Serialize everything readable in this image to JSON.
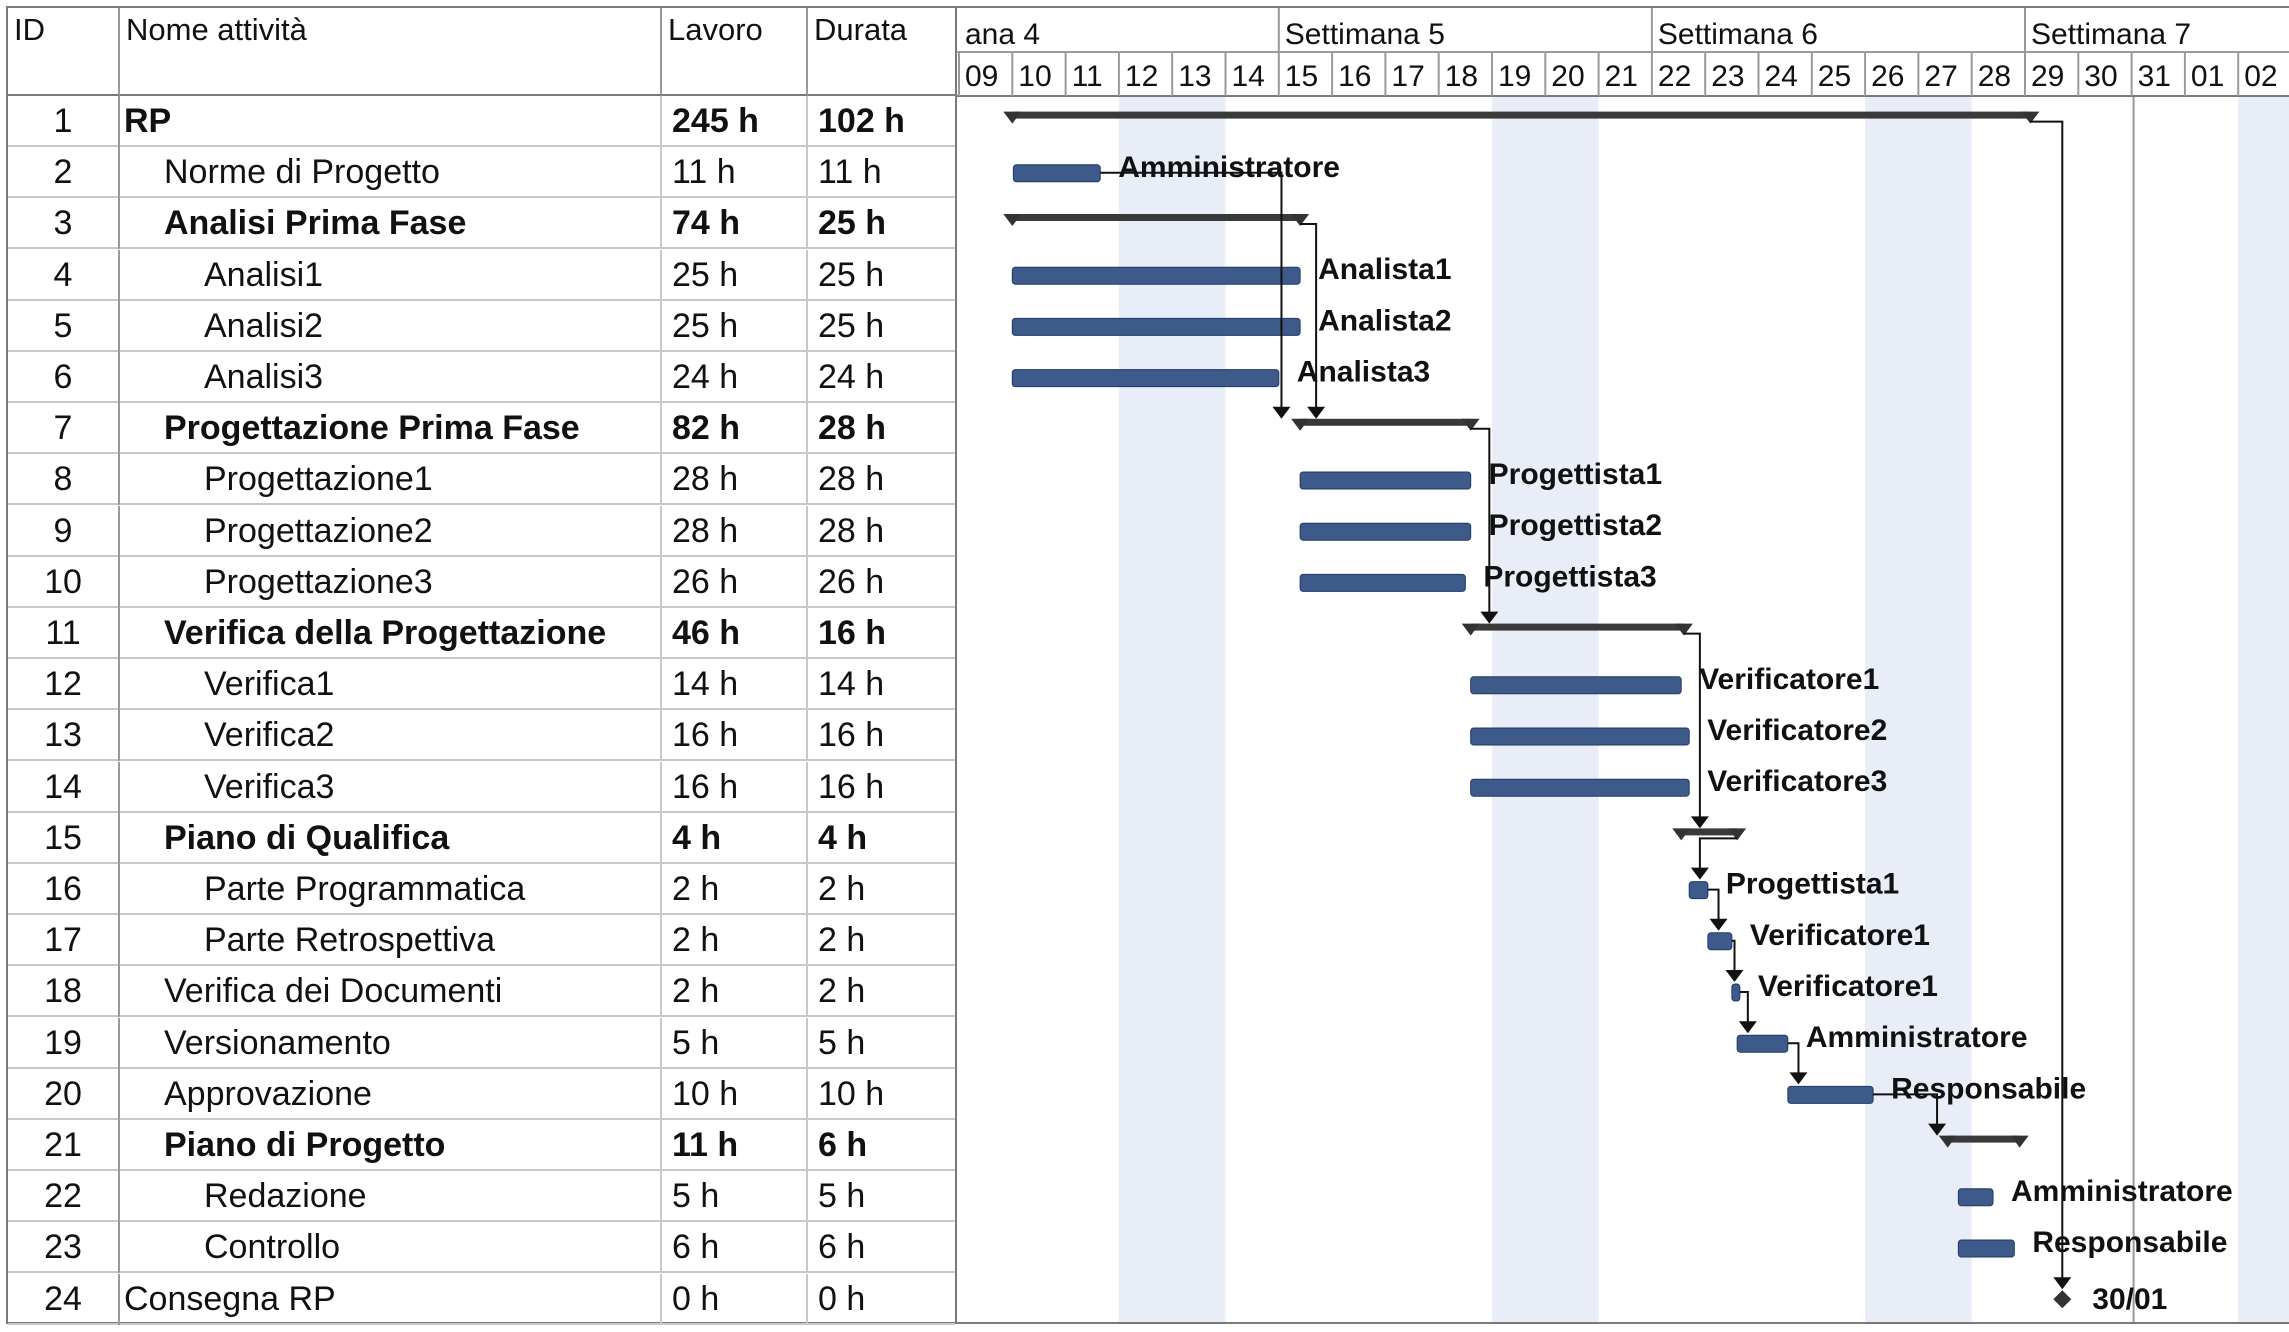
{
  "columns": {
    "id": "ID",
    "name": "Nome attività",
    "work": "Lavoro",
    "duration": "Durata"
  },
  "timeline": {
    "weeks": [
      "ana 4",
      "Settimana 5",
      "Settimana 6",
      "Settimana 7"
    ],
    "days": [
      "09",
      "10",
      "11",
      "12",
      "13",
      "14",
      "15",
      "16",
      "17",
      "18",
      "19",
      "20",
      "21",
      "22",
      "23",
      "24",
      "25",
      "26",
      "27",
      "28",
      "29",
      "30",
      "31",
      "01",
      "02"
    ]
  },
  "tasks": [
    {
      "id": "1",
      "name": "RP",
      "work": "245 h",
      "duration": "102 h",
      "level": 0,
      "summary": true
    },
    {
      "id": "2",
      "name": "Norme di Progetto",
      "work": "11 h",
      "duration": "11 h",
      "level": 1,
      "summary": false,
      "resource": "Amministratore"
    },
    {
      "id": "3",
      "name": "Analisi Prima Fase",
      "work": "74 h",
      "duration": "25 h",
      "level": 1,
      "summary": true
    },
    {
      "id": "4",
      "name": "Analisi1",
      "work": "25 h",
      "duration": "25 h",
      "level": 2,
      "summary": false,
      "resource": "Analista1"
    },
    {
      "id": "5",
      "name": "Analisi2",
      "work": "25 h",
      "duration": "25 h",
      "level": 2,
      "summary": false,
      "resource": "Analista2"
    },
    {
      "id": "6",
      "name": "Analisi3",
      "work": "24 h",
      "duration": "24 h",
      "level": 2,
      "summary": false,
      "resource": "Analista3"
    },
    {
      "id": "7",
      "name": "Progettazione Prima Fase",
      "work": "82 h",
      "duration": "28 h",
      "level": 1,
      "summary": true
    },
    {
      "id": "8",
      "name": "Progettazione1",
      "work": "28 h",
      "duration": "28 h",
      "level": 2,
      "summary": false,
      "resource": "Progettista1"
    },
    {
      "id": "9",
      "name": "Progettazione2",
      "work": "28 h",
      "duration": "28 h",
      "level": 2,
      "summary": false,
      "resource": "Progettista2"
    },
    {
      "id": "10",
      "name": "Progettazione3",
      "work": "26 h",
      "duration": "26 h",
      "level": 2,
      "summary": false,
      "resource": "Progettista3"
    },
    {
      "id": "11",
      "name": "Verifica della Progettazione",
      "work": "46 h",
      "duration": "16 h",
      "level": 1,
      "summary": true
    },
    {
      "id": "12",
      "name": "Verifica1",
      "work": "14 h",
      "duration": "14 h",
      "level": 2,
      "summary": false,
      "resource": "Verificatore1"
    },
    {
      "id": "13",
      "name": "Verifica2",
      "work": "16 h",
      "duration": "16 h",
      "level": 2,
      "summary": false,
      "resource": "Verificatore2"
    },
    {
      "id": "14",
      "name": "Verifica3",
      "work": "16 h",
      "duration": "16 h",
      "level": 2,
      "summary": false,
      "resource": "Verificatore3"
    },
    {
      "id": "15",
      "name": "Piano di Qualifica",
      "work": "4 h",
      "duration": "4 h",
      "level": 1,
      "summary": true
    },
    {
      "id": "16",
      "name": "Parte Programmatica",
      "work": "2 h",
      "duration": "2 h",
      "level": 2,
      "summary": false,
      "resource": "Progettista1"
    },
    {
      "id": "17",
      "name": "Parte Retrospettiva",
      "work": "2 h",
      "duration": "2 h",
      "level": 2,
      "summary": false,
      "resource": "Verificatore1"
    },
    {
      "id": "18",
      "name": "Verifica dei Documenti",
      "work": "2 h",
      "duration": "2 h",
      "level": 1,
      "summary": false,
      "resource": "Verificatore1"
    },
    {
      "id": "19",
      "name": "Versionamento",
      "work": "5 h",
      "duration": "5 h",
      "level": 1,
      "summary": false,
      "resource": "Amministratore"
    },
    {
      "id": "20",
      "name": "Approvazione",
      "work": "10 h",
      "duration": "10 h",
      "level": 1,
      "summary": false,
      "resource": "Responsabile"
    },
    {
      "id": "21",
      "name": "Piano di Progetto",
      "work": "11 h",
      "duration": "6 h",
      "level": 1,
      "summary": true
    },
    {
      "id": "22",
      "name": "Redazione",
      "work": "5 h",
      "duration": "5 h",
      "level": 2,
      "summary": false,
      "resource": "Amministratore"
    },
    {
      "id": "23",
      "name": "Controllo",
      "work": "6 h",
      "duration": "6 h",
      "level": 2,
      "summary": false,
      "resource": "Responsabile"
    },
    {
      "id": "24",
      "name": "Consegna RP",
      "work": "0 h",
      "duration": "0 h",
      "level": 0,
      "summary": false,
      "milestone": true,
      "resource": "30/01"
    }
  ],
  "colors": {
    "task_bar": "#3d5a8a",
    "summary_bar": "#3a3a3a",
    "weekend_shade": "#e8edf7",
    "grid": "#c8c8c8"
  }
}
